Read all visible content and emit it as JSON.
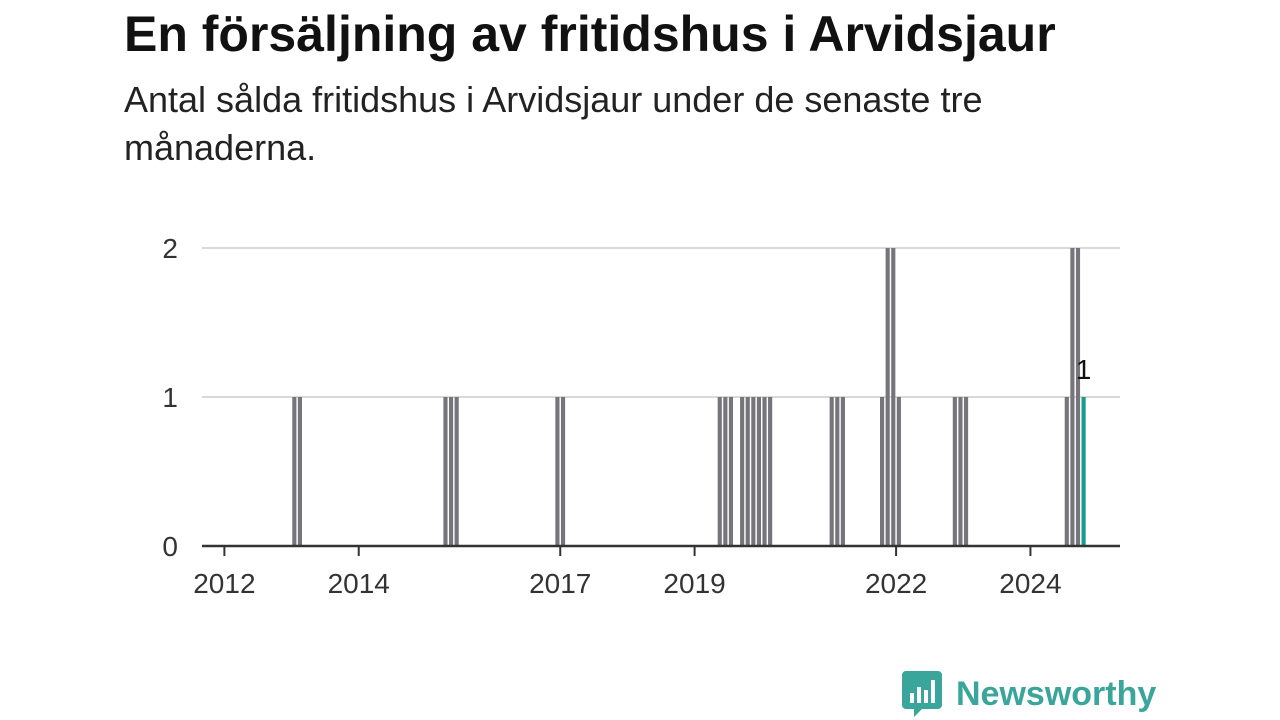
{
  "colors": {
    "bar": "#75757b",
    "highlight": "#1a9b8e",
    "grid": "#d9d9d9",
    "axis": "#333333",
    "brand": "#3aa59a"
  },
  "logo": {
    "icon": "newsworthy-chart-icon",
    "text": "Newsworthy"
  },
  "chart_data": {
    "type": "bar",
    "title": "En försäljning av fritidshus i Arvidsjaur",
    "subtitle": "Antal sålda fritidshus i Arvidsjaur under de senaste tre månaderna.",
    "x_axis": {
      "ticks": [
        "2012",
        "2014",
        "2017",
        "2019",
        "2022",
        "2024"
      ]
    },
    "y_axis": {
      "range": [
        0,
        2
      ],
      "ticks": [
        "0",
        "1",
        "2"
      ]
    },
    "grid": true,
    "legend": "none",
    "series": [
      {
        "values_by_month": [
          {
            "x": "2013-01",
            "y": 1
          },
          {
            "x": "2013-02",
            "y": 1
          },
          {
            "x": "2015-04",
            "y": 1
          },
          {
            "x": "2015-05",
            "y": 1
          },
          {
            "x": "2015-06",
            "y": 1
          },
          {
            "x": "2016-12",
            "y": 1
          },
          {
            "x": "2017-01",
            "y": 1
          },
          {
            "x": "2019-05",
            "y": 1
          },
          {
            "x": "2019-06",
            "y": 1
          },
          {
            "x": "2019-07",
            "y": 1
          },
          {
            "x": "2019-09",
            "y": 1
          },
          {
            "x": "2019-10",
            "y": 1
          },
          {
            "x": "2019-11",
            "y": 1
          },
          {
            "x": "2019-12",
            "y": 1
          },
          {
            "x": "2020-01",
            "y": 1
          },
          {
            "x": "2020-02",
            "y": 1
          },
          {
            "x": "2021-01",
            "y": 1
          },
          {
            "x": "2021-02",
            "y": 1
          },
          {
            "x": "2021-03",
            "y": 1
          },
          {
            "x": "2021-10",
            "y": 1
          },
          {
            "x": "2021-11",
            "y": 2
          },
          {
            "x": "2021-12",
            "y": 2
          },
          {
            "x": "2022-01",
            "y": 1
          },
          {
            "x": "2022-11",
            "y": 1
          },
          {
            "x": "2022-12",
            "y": 1
          },
          {
            "x": "2023-01",
            "y": 1
          },
          {
            "x": "2024-07",
            "y": 1
          },
          {
            "x": "2024-08",
            "y": 2
          },
          {
            "x": "2024-09",
            "y": 2
          },
          {
            "x": "2024-10",
            "y": 1
          }
        ]
      }
    ],
    "highlight": {
      "x": "2024-10",
      "y": 1,
      "label": "1"
    }
  }
}
